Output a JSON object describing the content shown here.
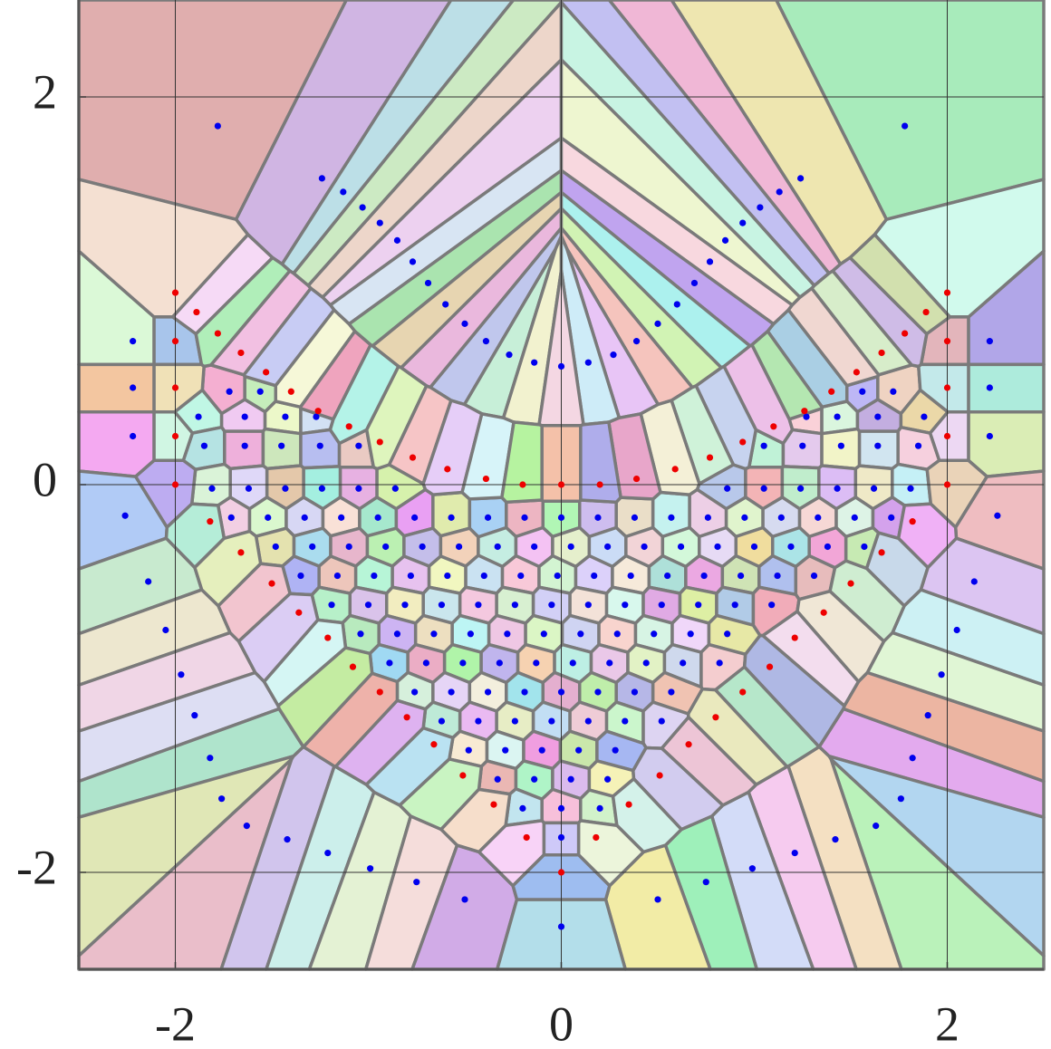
{
  "chart_data": {
    "type": "scatter",
    "xlim": [
      -2.5,
      2.5
    ],
    "ylim": [
      -2.5,
      2.5
    ],
    "xticks": [
      -2,
      0,
      2
    ],
    "yticks": [
      -2,
      0,
      2
    ],
    "grid": true,
    "series": [
      {
        "color": "#0000ee",
        "x": [
          -1.78,
          1.78,
          -1.24,
          1.24,
          -1.13,
          1.13,
          -1.03,
          1.03,
          -0.94,
          0.94,
          -0.85,
          0.85,
          -0.77,
          0.77,
          -0.69,
          0.69,
          -0.6,
          0.6,
          -0.5,
          0.5,
          -0.39,
          0.39,
          -0.27,
          0.27,
          -0.14,
          0.14,
          0,
          -2.22,
          2.22,
          -2.22,
          2.22,
          -2.22,
          2.22,
          -2.26,
          2.26,
          -2.14,
          2.14,
          -2.05,
          2.05,
          -1.97,
          1.97,
          -1.9,
          1.9,
          -1.82,
          1.82,
          -1.76,
          1.76,
          -1.63,
          1.63,
          -1.42,
          1.42,
          -1.21,
          1.21,
          -0.99,
          0.99,
          -0.75,
          0.75,
          -0.5,
          0.5,
          0,
          -1.72,
          -1.56,
          1.56,
          1.72,
          -1.88,
          -1.64,
          -1.43,
          -1.27,
          1.27,
          1.43,
          1.64,
          1.88,
          -1.85,
          -1.64,
          -1.45,
          -1.25,
          -1.05,
          1.05,
          1.25,
          1.45,
          1.64,
          1.85,
          -1.81,
          -1.62,
          -1.43,
          -1.24,
          -1.05,
          -0.86,
          0.86,
          1.05,
          1.24,
          1.43,
          1.62,
          1.81,
          -1.71,
          -1.52,
          -1.33,
          -1.14,
          -0.95,
          -0.76,
          -0.57,
          -0.38,
          -0.19,
          0,
          0.19,
          0.38,
          0.57,
          0.76,
          0.95,
          1.14,
          1.33,
          1.52,
          1.71,
          -1.48,
          -1.29,
          -1.1,
          -0.91,
          -0.72,
          -0.53,
          -0.33,
          -0.14,
          0.05,
          0.24,
          0.43,
          0.62,
          0.81,
          1.0,
          1.19,
          1.38,
          1.57,
          -1.35,
          -1.16,
          -0.97,
          -0.78,
          -0.59,
          -0.4,
          -0.21,
          -0.02,
          0.17,
          0.36,
          0.55,
          0.74,
          0.93,
          1.12,
          1.31,
          -1.19,
          -1.0,
          -0.81,
          -0.62,
          -0.43,
          -0.24,
          -0.05,
          0.14,
          0.33,
          0.52,
          0.71,
          0.9,
          1.09,
          -1.04,
          -0.85,
          -0.66,
          -0.47,
          -0.28,
          -0.09,
          0.1,
          0.29,
          0.48,
          0.67,
          0.86,
          -0.89,
          -0.7,
          -0.51,
          -0.32,
          -0.13,
          0.06,
          0.25,
          0.44,
          0.63,
          0.82,
          -0.76,
          -0.57,
          -0.38,
          -0.19,
          0,
          0.19,
          0.38,
          0.57,
          -0.62,
          -0.43,
          -0.24,
          -0.05,
          0.14,
          0.33,
          0.52,
          -0.48,
          -0.29,
          -0.1,
          0.09,
          0.28,
          -0.33,
          -0.14,
          0.05,
          0.24,
          -0.2,
          0,
          0.2,
          0
        ],
        "y": [
          1.85,
          1.85,
          1.58,
          1.58,
          1.51,
          1.51,
          1.43,
          1.43,
          1.35,
          1.35,
          1.26,
          1.26,
          1.15,
          1.15,
          1.04,
          1.04,
          0.93,
          0.93,
          0.83,
          0.83,
          0.74,
          0.74,
          0.67,
          0.67,
          0.63,
          0.63,
          0.61,
          0.74,
          0.74,
          0.5,
          0.5,
          0.25,
          0.25,
          -0.16,
          -0.16,
          -0.5,
          -0.5,
          -0.75,
          -0.75,
          -0.98,
          -0.98,
          -1.19,
          -1.19,
          -1.41,
          -1.41,
          -1.62,
          -1.62,
          -1.76,
          -1.76,
          -1.83,
          -1.83,
          -1.9,
          -1.9,
          -1.98,
          -1.98,
          -2.05,
          -2.05,
          -2.14,
          -2.14,
          -2.28,
          0.48,
          0.48,
          0.48,
          0.48,
          0.35,
          0.35,
          0.35,
          0.35,
          0.35,
          0.35,
          0.35,
          0.35,
          0.2,
          0.2,
          0.2,
          0.2,
          0.2,
          0.2,
          0.2,
          0.2,
          0.2,
          0.2,
          -0.02,
          -0.02,
          -0.02,
          -0.02,
          -0.02,
          -0.02,
          -0.02,
          -0.02,
          -0.02,
          -0.02,
          -0.02,
          -0.02,
          -0.17,
          -0.17,
          -0.17,
          -0.17,
          -0.17,
          -0.17,
          -0.17,
          -0.17,
          -0.17,
          -0.17,
          -0.17,
          -0.17,
          -0.17,
          -0.17,
          -0.17,
          -0.17,
          -0.17,
          -0.17,
          -0.17,
          -0.32,
          -0.32,
          -0.32,
          -0.32,
          -0.32,
          -0.32,
          -0.32,
          -0.32,
          -0.32,
          -0.32,
          -0.32,
          -0.32,
          -0.32,
          -0.32,
          -0.32,
          -0.32,
          -0.32,
          -0.47,
          -0.47,
          -0.47,
          -0.47,
          -0.47,
          -0.47,
          -0.47,
          -0.47,
          -0.47,
          -0.47,
          -0.47,
          -0.47,
          -0.47,
          -0.47,
          -0.47,
          -0.62,
          -0.62,
          -0.62,
          -0.62,
          -0.62,
          -0.62,
          -0.62,
          -0.62,
          -0.62,
          -0.62,
          -0.62,
          -0.62,
          -0.62,
          -0.77,
          -0.77,
          -0.77,
          -0.77,
          -0.77,
          -0.77,
          -0.77,
          -0.77,
          -0.77,
          -0.77,
          -0.77,
          -0.92,
          -0.92,
          -0.92,
          -0.92,
          -0.92,
          -0.92,
          -0.92,
          -0.92,
          -0.92,
          -0.92,
          -1.07,
          -1.07,
          -1.07,
          -1.07,
          -1.07,
          -1.07,
          -1.07,
          -1.07,
          -1.22,
          -1.22,
          -1.22,
          -1.22,
          -1.22,
          -1.22,
          -1.22,
          -1.37,
          -1.37,
          -1.37,
          -1.37,
          -1.37,
          -1.52,
          -1.52,
          -1.52,
          -1.52,
          -1.67,
          -1.67,
          -1.67,
          -1.82
        ]
      },
      {
        "color": "#ee0000",
        "x": [
          -2,
          2,
          -1.89,
          1.89,
          -2,
          2,
          -1.78,
          1.78,
          -2,
          2,
          -1.66,
          1.66,
          -1.53,
          1.53,
          -2,
          2,
          -1.4,
          1.4,
          -1.26,
          1.26,
          -2,
          2,
          -1.1,
          1.1,
          -0.94,
          0.94,
          -0.77,
          0.77,
          -0.59,
          0.59,
          -0.39,
          0.39,
          -0.2,
          0.2,
          0,
          -1.82,
          1.82,
          -1.66,
          1.66,
          -1.5,
          1.5,
          -1.36,
          1.36,
          -1.21,
          1.21,
          -1.08,
          1.08,
          -0.94,
          0.94,
          -0.8,
          0.8,
          -0.66,
          0.66,
          -0.51,
          0.51,
          -0.35,
          0.35,
          -0.18,
          0.18,
          0
        ],
        "y": [
          0.99,
          0.99,
          0.89,
          0.89,
          0.74,
          0.74,
          0.78,
          0.78,
          0.5,
          0.5,
          0.68,
          0.68,
          0.58,
          0.58,
          0.25,
          0.25,
          0.48,
          0.48,
          0.38,
          0.38,
          0,
          0,
          0.3,
          0.3,
          0.22,
          0.22,
          0.14,
          0.14,
          0.08,
          0.08,
          0.03,
          0.03,
          0,
          0,
          0,
          -0.19,
          -0.19,
          -0.35,
          -0.35,
          -0.51,
          -0.51,
          -0.66,
          -0.66,
          -0.79,
          -0.79,
          -0.94,
          -0.94,
          -1.07,
          -1.07,
          -1.2,
          -1.2,
          -1.34,
          -1.34,
          -1.5,
          -1.5,
          -1.65,
          -1.65,
          -1.82,
          -1.82,
          -2
        ]
      }
    ]
  }
}
